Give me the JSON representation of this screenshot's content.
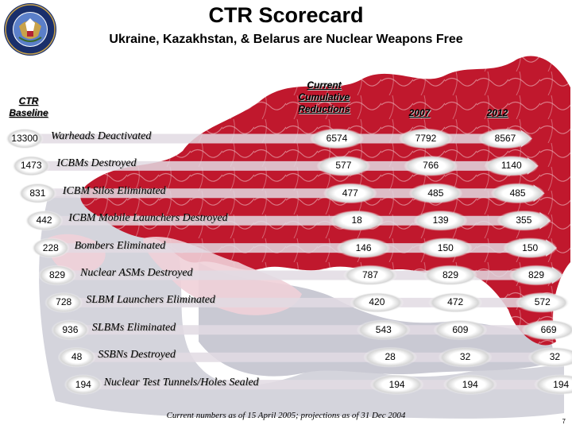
{
  "header": {
    "title": "CTR Scorecard",
    "subtitle": "Ukraine, Kazakhstan, & Belarus are Nuclear Weapons Free"
  },
  "columns": {
    "baseline": "CTR Baseline",
    "current": "Current Cumulative Reductions",
    "y2007": "2007",
    "y2012": "2012"
  },
  "rows": [
    {
      "baseline": "13300",
      "label": "Warheads Deactivated",
      "current": "6574",
      "y2007": "7792",
      "y2012": "8567"
    },
    {
      "baseline": "1473",
      "label": "ICBMs Destroyed",
      "current": "577",
      "y2007": "766",
      "y2012": "1140"
    },
    {
      "baseline": "831",
      "label": "ICBM Silos Eliminated",
      "current": "477",
      "y2007": "485",
      "y2012": "485"
    },
    {
      "baseline": "442",
      "label": "ICBM Mobile Launchers Destroyed",
      "current": "18",
      "y2007": "139",
      "y2012": "355"
    },
    {
      "baseline": "228",
      "label": "Bombers Eliminated",
      "current": "146",
      "y2007": "150",
      "y2012": "150"
    },
    {
      "baseline": "829",
      "label": "Nuclear ASMs Destroyed",
      "current": "787",
      "y2007": "829",
      "y2012": "829"
    },
    {
      "baseline": "728",
      "label": "SLBM Launchers Eliminated",
      "current": "420",
      "y2007": "472",
      "y2012": "572"
    },
    {
      "baseline": "936",
      "label": "SLBMs Eliminated",
      "current": "543",
      "y2007": "609",
      "y2012": "669"
    },
    {
      "baseline": "48",
      "label": "SSBNs Destroyed",
      "current": "28",
      "y2007": "32",
      "y2012": "32"
    },
    {
      "baseline": "194",
      "label": "Nuclear Test Tunnels/Holes Sealed",
      "current": "194",
      "y2007": "194",
      "y2012": "194"
    }
  ],
  "footer": {
    "note": "Current numbers as of 15 April 2005; projections as of 31 Dec 2004",
    "page": "7"
  },
  "colors": {
    "map_red": "#c0182d",
    "map_gray": "#cfcfd8",
    "cell_glow": "#d8d8d8"
  },
  "icons": {
    "seal": "department-of-defense-seal-icon"
  }
}
